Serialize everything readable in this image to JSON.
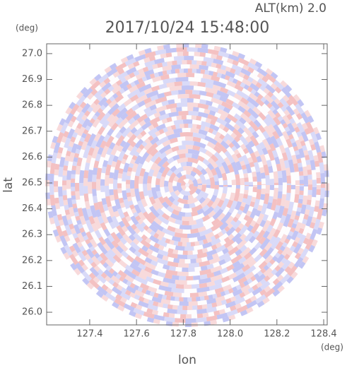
{
  "chart_data": {
    "type": "radar-ppi",
    "title": "2017/10/24 15:48:00",
    "altitude_label": "ALT(km) 2.0",
    "x_label": "lon",
    "x_unit": "(deg)",
    "y_label": "lat",
    "y_unit": "(deg)",
    "xlim": [
      127.216,
      128.415
    ],
    "ylim": [
      25.951,
      27.038
    ],
    "xticks": [
      127.4,
      127.6,
      127.8,
      {
        "value": 128.0,
        "label": "128.0"
      },
      128.2,
      128.4
    ],
    "yticks": [
      {
        "value": 26.0,
        "label": "26.0"
      },
      26.1,
      26.2,
      26.3,
      26.4,
      26.5,
      26.6,
      26.7,
      26.8,
      26.9,
      {
        "value": 27.0,
        "label": "27.0"
      }
    ]
  }
}
